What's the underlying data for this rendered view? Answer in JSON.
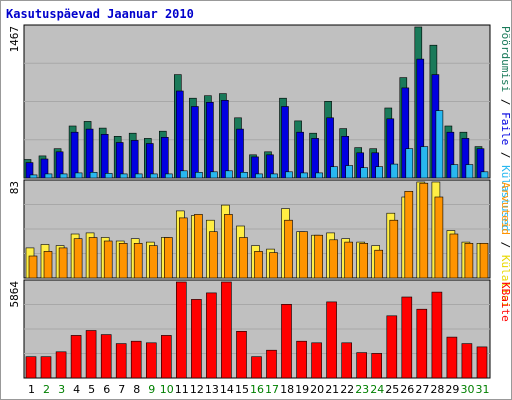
{
  "title": "Kasutuspäevad Jaanuar 2010",
  "colors": {
    "page_bg": "#ffffff",
    "plot_bg": "#c0c0c0",
    "title": "#0000cc",
    "weekday_label": "#000000",
    "weekend_label": "#008000",
    "visits": "#1a7a5a",
    "pages": "#0000e0",
    "files": "#28b8f0",
    "sites": "#ffee44",
    "hits": "#ff9400",
    "kbytes": "#ff0000"
  },
  "side_labels": {
    "top": [
      {
        "text": "Pöördumisi",
        "color": "#1a7a5a"
      },
      {
        "text": " / ",
        "color": "#000000"
      },
      {
        "text": "Faile",
        "color": "#0000e0"
      },
      {
        "text": " / ",
        "color": "#000000"
      },
      {
        "text": "Külastused",
        "color": "#28b8f0"
      }
    ],
    "middle": [
      {
        "text": "Arvuteid",
        "color": "#ff9400"
      },
      {
        "text": " / ",
        "color": "#000000"
      },
      {
        "text": "Külalisi",
        "color": "#e8d800"
      }
    ],
    "bottom": [
      {
        "text": "KBaite",
        "color": "#ff0000"
      }
    ]
  },
  "chart_data": [
    {
      "type": "bar",
      "panel": "top",
      "ymax_label": "1467",
      "ylim": [
        0,
        1467
      ],
      "categories": [
        "1",
        "2",
        "3",
        "4",
        "5",
        "6",
        "7",
        "8",
        "9",
        "10",
        "11",
        "12",
        "13",
        "14",
        "15",
        "16",
        "17",
        "18",
        "19",
        "20",
        "21",
        "22",
        "23",
        "24",
        "25",
        "26",
        "27",
        "28",
        "29",
        "30",
        "31"
      ],
      "series": [
        {
          "key": "visits",
          "values": [
            180,
            215,
            285,
            505,
            550,
            485,
            405,
            435,
            385,
            455,
            1005,
            775,
            800,
            820,
            585,
            225,
            255,
            775,
            555,
            435,
            745,
            480,
            295,
            285,
            680,
            975,
            1467,
            1290,
            505,
            445,
            305
          ]
        },
        {
          "key": "pages",
          "values": [
            150,
            185,
            255,
            445,
            475,
            425,
            345,
            365,
            335,
            395,
            845,
            695,
            735,
            755,
            475,
            205,
            225,
            695,
            445,
            385,
            585,
            405,
            245,
            245,
            575,
            875,
            1155,
            1005,
            445,
            385,
            285
          ]
        },
        {
          "key": "files",
          "values": [
            30,
            40,
            40,
            50,
            55,
            45,
            40,
            40,
            40,
            40,
            70,
            55,
            60,
            70,
            55,
            40,
            40,
            60,
            50,
            50,
            110,
            120,
            100,
            110,
            135,
            285,
            305,
            655,
            130,
            130,
            60
          ]
        }
      ]
    },
    {
      "type": "bar",
      "panel": "middle",
      "ymax_label": "83",
      "ylim": [
        0,
        83
      ],
      "categories": [
        "1",
        "2",
        "3",
        "4",
        "5",
        "6",
        "7",
        "8",
        "9",
        "10",
        "11",
        "12",
        "13",
        "14",
        "15",
        "16",
        "17",
        "18",
        "19",
        "20",
        "21",
        "22",
        "23",
        "24",
        "25",
        "26",
        "27",
        "28",
        "29",
        "30",
        "31"
      ],
      "series": [
        {
          "key": "sites",
          "values": [
            26,
            29,
            28,
            38,
            39,
            35,
            32,
            34,
            31,
            35,
            58,
            54,
            50,
            63,
            45,
            28,
            25,
            60,
            40,
            37,
            39,
            34,
            31,
            28,
            56,
            70,
            83,
            83,
            41,
            31,
            30
          ]
        },
        {
          "key": "hits",
          "values": [
            19,
            23,
            26,
            34,
            35,
            32,
            30,
            30,
            28,
            35,
            52,
            55,
            40,
            55,
            35,
            23,
            22,
            50,
            40,
            37,
            33,
            31,
            30,
            24,
            50,
            75,
            82,
            70,
            38,
            30,
            30
          ]
        }
      ]
    },
    {
      "type": "bar",
      "panel": "bottom",
      "ymax_label": "5864",
      "ylim": [
        0,
        5864
      ],
      "categories": [
        "1",
        "2",
        "3",
        "4",
        "5",
        "6",
        "7",
        "8",
        "9",
        "10",
        "11",
        "12",
        "13",
        "14",
        "15",
        "16",
        "17",
        "18",
        "19",
        "20",
        "21",
        "22",
        "23",
        "24",
        "25",
        "26",
        "27",
        "28",
        "29",
        "30",
        "31"
      ],
      "series": [
        {
          "key": "kbytes",
          "values": [
            1300,
            1300,
            1600,
            2600,
            2900,
            2650,
            2100,
            2250,
            2150,
            2600,
            5864,
            4800,
            5200,
            5864,
            2850,
            1300,
            1700,
            4500,
            2250,
            2150,
            4650,
            2150,
            1550,
            1500,
            3800,
            4950,
            4200,
            5250,
            2500,
            2100,
            1900
          ]
        }
      ]
    }
  ]
}
